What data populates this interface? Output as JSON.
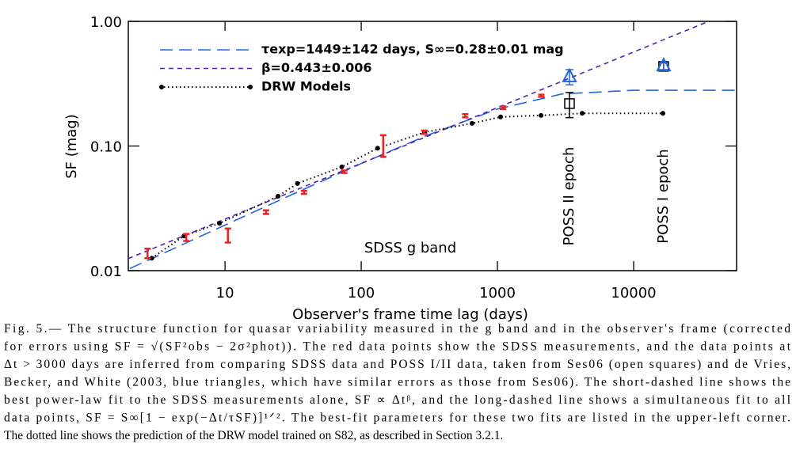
{
  "chart_data": {
    "type": "line",
    "xlog": true,
    "ylog": true,
    "xlabel": "Observer's frame time lag (days)",
    "ylabel": "SF (mag)",
    "xlim": [
      1.95,
      57000
    ],
    "ylim": [
      0.01,
      1.0
    ],
    "xticks": [
      10,
      100,
      1000,
      10000
    ],
    "yticks": [
      {
        "value": 0.01,
        "label": "0.01"
      },
      {
        "value": 0.1,
        "label": "0.10"
      },
      {
        "value": 1.0,
        "label": "1.00"
      }
    ],
    "legend": "upper left",
    "annotations": [
      "SDSS g band",
      "POSS II epoch",
      "POSS I epoch"
    ],
    "series": [
      {
        "name": "τexp=1449±142 days, S∞=0.28±0.01 mag",
        "color": "#2266dd",
        "style": "long-dash",
        "x": [
          2,
          5,
          10,
          30,
          100,
          300,
          1000,
          3000,
          10000,
          57000
        ],
        "values": [
          0.0104,
          0.0164,
          0.0232,
          0.0401,
          0.0723,
          0.121,
          0.198,
          0.262,
          0.28,
          0.28
        ]
      },
      {
        "name": "β=0.443±0.006",
        "color": "#5522aa",
        "style": "short-dash",
        "x": [
          1.95,
          35500
        ],
        "values": [
          0.0125,
          1.0
        ]
      },
      {
        "name": "DRW Models",
        "color": "#000000",
        "style": "dotted-dots",
        "x": [
          2.9,
          5.0,
          9.1,
          24.5,
          34,
          72,
          132,
          292,
          651,
          1055,
          2090,
          4190,
          16400
        ],
        "values": [
          0.0126,
          0.019,
          0.024,
          0.0395,
          0.05,
          0.068,
          0.096,
          0.129,
          0.152,
          0.171,
          0.176,
          0.183,
          0.183
        ]
      },
      {
        "color": "#ee2222",
        "style": "errorbar",
        "x": [
          2.7,
          5.2,
          10.5,
          20,
          38,
          75,
          145,
          290,
          580,
          1100,
          2100
        ],
        "values": [
          0.0138,
          0.0185,
          0.0193,
          0.0295,
          0.0425,
          0.0622,
          0.102,
          0.129,
          0.175,
          0.203,
          0.253
        ],
        "errors": [
          0.0012,
          0.0012,
          0.0025,
          0.001,
          0.0012,
          0.0015,
          0.02,
          0.004,
          0.005,
          0.005,
          0.005
        ]
      },
      {
        "color": "#000000",
        "style": "square",
        "x": [
          3380,
          16600
        ],
        "values": [
          0.219,
          0.435
        ],
        "errors": [
          0.05,
          0.03
        ]
      },
      {
        "color": "#2266dd",
        "style": "triangle",
        "x": [
          3380,
          16600
        ],
        "values": [
          0.36,
          0.44
        ],
        "errors": [
          0.05,
          0.03
        ]
      }
    ]
  },
  "caption": {
    "lines": [
      "Fig.  5.— The structure function for quasar variability measured in the g band and in the observer's frame (corrected",
      "for errors using SF = √(SF²obs − 2σ²phot)).  The red data points show the SDSS measurements, and the data points at",
      "Δt > 3000 days are inferred from comparing SDSS data and POSS I/II data, taken from Ses06 (open squares) and de Vries,",
      "Becker, and White (2003, blue triangles, which have similar errors as those from Ses06). The short-dashed line shows the",
      "best power-law fit to the SDSS measurements alone, SF ∝ Δtᵝ, and the long-dashed line shows a simultaneous fit to all",
      "data points, SF = S∞[1 − exp(−Δt/τSF)]¹ᐟ². The best-fit parameters for these two fits are listed in the upper-left corner.",
      "The dotted line shows the prediction of the DRW model trained on S82, as described in Section 3.2.1."
    ]
  }
}
